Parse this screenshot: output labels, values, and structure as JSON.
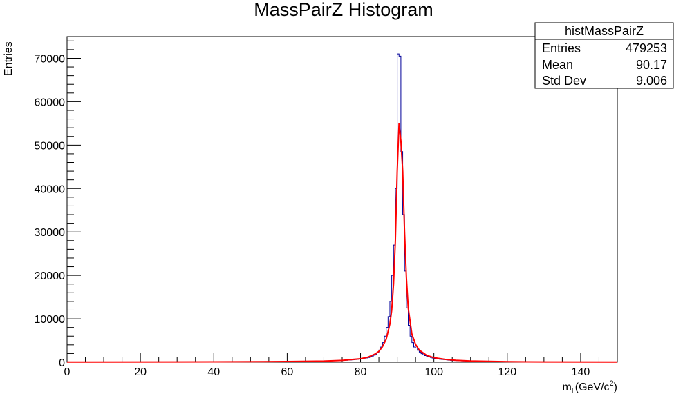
{
  "chart_data": {
    "type": "histogram",
    "title": "MassPairZ Histogram",
    "xlabel": {
      "base": "m",
      "sub": "ll",
      "unit_pre": "(GeV/c",
      "sup": "2",
      "unit_post": ")"
    },
    "ylabel": "Entries",
    "xlim": [
      0,
      150
    ],
    "ylim": [
      0,
      75000
    ],
    "x_ticks": [
      0,
      20,
      40,
      60,
      80,
      100,
      120,
      140
    ],
    "y_ticks": [
      0,
      10000,
      20000,
      30000,
      40000,
      50000,
      60000,
      70000
    ],
    "bin_width": 0.5,
    "histogram_color": "#000099",
    "fit_color": "#ff0000",
    "peak_bins": [
      {
        "x": 70,
        "y": 250
      },
      {
        "x": 72,
        "y": 300
      },
      {
        "x": 74,
        "y": 350
      },
      {
        "x": 76,
        "y": 420
      },
      {
        "x": 78,
        "y": 550
      },
      {
        "x": 80,
        "y": 750
      },
      {
        "x": 82,
        "y": 1000
      },
      {
        "x": 83,
        "y": 1300
      },
      {
        "x": 84,
        "y": 1700
      },
      {
        "x": 85,
        "y": 2300
      },
      {
        "x": 85.5,
        "y": 2800
      },
      {
        "x": 86,
        "y": 3500
      },
      {
        "x": 86.5,
        "y": 4500
      },
      {
        "x": 87,
        "y": 6000
      },
      {
        "x": 87.5,
        "y": 8000
      },
      {
        "x": 88,
        "y": 10500
      },
      {
        "x": 88.5,
        "y": 14000
      },
      {
        "x": 89,
        "y": 20000
      },
      {
        "x": 89.5,
        "y": 27000
      },
      {
        "x": 90,
        "y": 40000
      },
      {
        "x": 90.5,
        "y": 71000
      },
      {
        "x": 91,
        "y": 70500
      },
      {
        "x": 91.5,
        "y": 48500
      },
      {
        "x": 92,
        "y": 34000
      },
      {
        "x": 92.5,
        "y": 21000
      },
      {
        "x": 93,
        "y": 12500
      },
      {
        "x": 93.5,
        "y": 8500
      },
      {
        "x": 94,
        "y": 6000
      },
      {
        "x": 94.5,
        "y": 4500
      },
      {
        "x": 95,
        "y": 3500
      },
      {
        "x": 96,
        "y": 2500
      },
      {
        "x": 97,
        "y": 1800
      },
      {
        "x": 98,
        "y": 1400
      },
      {
        "x": 100,
        "y": 900
      },
      {
        "x": 102,
        "y": 650
      },
      {
        "x": 105,
        "y": 400
      },
      {
        "x": 110,
        "y": 200
      },
      {
        "x": 115,
        "y": 120
      },
      {
        "x": 120,
        "y": 80
      }
    ],
    "fit_points": [
      [
        0,
        30
      ],
      [
        40,
        80
      ],
      [
        60,
        150
      ],
      [
        70,
        250
      ],
      [
        75,
        420
      ],
      [
        80,
        800
      ],
      [
        82,
        1150
      ],
      [
        84,
        1900
      ],
      [
        85,
        2500
      ],
      [
        86,
        3600
      ],
      [
        87,
        5300
      ],
      [
        88,
        8800
      ],
      [
        88.5,
        12000
      ],
      [
        89,
        18000
      ],
      [
        89.5,
        28000
      ],
      [
        90,
        44000
      ],
      [
        90.5,
        55000
      ],
      [
        91,
        51000
      ],
      [
        91.5,
        44000
      ],
      [
        92,
        30000
      ],
      [
        92.5,
        19500
      ],
      [
        93,
        12500
      ],
      [
        94,
        6500
      ],
      [
        95,
        4100
      ],
      [
        96,
        2800
      ],
      [
        98,
        1600
      ],
      [
        100,
        1050
      ],
      [
        103,
        650
      ],
      [
        106,
        430
      ],
      [
        110,
        280
      ],
      [
        120,
        120
      ],
      [
        130,
        60
      ],
      [
        150,
        30
      ]
    ],
    "stats": {
      "name": "histMassPairZ",
      "rows": [
        {
          "label": "Entries",
          "value": "479253"
        },
        {
          "label": "Mean",
          "value": "90.17"
        },
        {
          "label": "Std Dev",
          "value": "9.006"
        }
      ]
    }
  }
}
